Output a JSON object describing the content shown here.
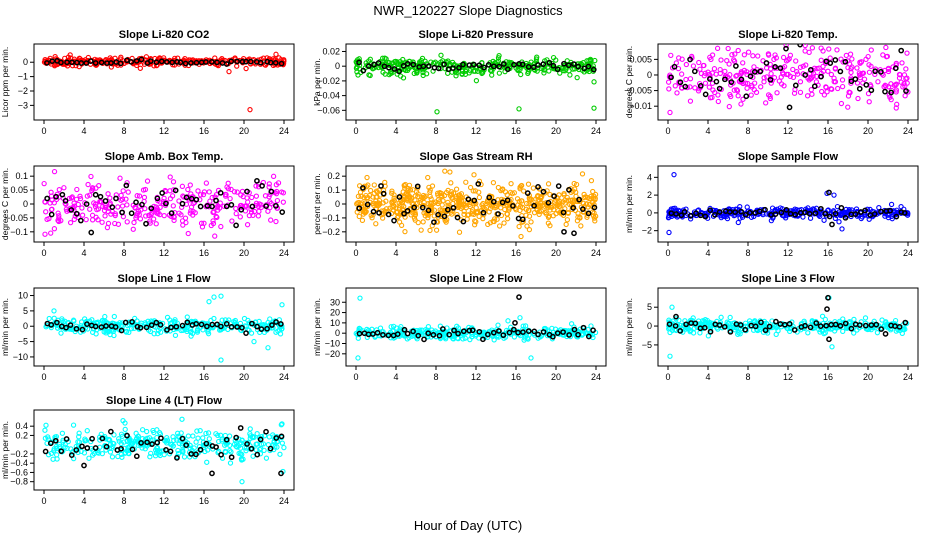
{
  "figure": {
    "title": "NWR_120227  Slope Diagnostics",
    "xlabel": "Hour of Day (UTC)"
  },
  "chart_data": [
    {
      "type": "scatter",
      "title": "Slope Li-820 CO2",
      "ylabel": "Licor ppm per min.",
      "xlim": [
        0,
        24
      ],
      "ylim": [
        -3.6,
        0.85
      ],
      "yticks": [
        -3,
        -2,
        -1,
        0
      ],
      "xticks": [
        0,
        4,
        8,
        12,
        16,
        20,
        24
      ],
      "series": [
        {
          "color": "#ff0000",
          "center": 0.05,
          "spread": 0.14,
          "n": 300,
          "outliers": [
            [
              20.6,
              -3.3
            ],
            [
              18.5,
              -0.65
            ],
            [
              23.2,
              0.55
            ],
            [
              23.5,
              0.3
            ]
          ]
        },
        {
          "color": "#000000",
          "center": 0.0,
          "spread": 0.06,
          "n": 48,
          "outliers": []
        }
      ]
    },
    {
      "type": "scatter",
      "title": "Slope Li-820 Pressure",
      "ylabel": "kPa per min.",
      "xlim": [
        0,
        24
      ],
      "ylim": [
        -0.065,
        0.022
      ],
      "yticks": [
        0.02,
        0.0,
        -0.02,
        -0.04,
        -0.06
      ],
      "xticks": [
        0,
        4,
        8,
        12,
        16,
        20,
        24
      ],
      "series": [
        {
          "color": "#00cc00",
          "center": 0.0,
          "spread": 0.006,
          "n": 340,
          "outliers": [
            [
              8.1,
              -0.062
            ],
            [
              16.3,
              -0.058
            ],
            [
              23.8,
              -0.057
            ],
            [
              0.2,
              -0.012
            ]
          ]
        },
        {
          "color": "#000000",
          "center": 0.0,
          "spread": 0.003,
          "n": 48,
          "outliers": []
        }
      ]
    },
    {
      "type": "scatter",
      "title": "Slope Li-820 Temp.",
      "ylabel": "degrees C per min.",
      "xlim": [
        0,
        24
      ],
      "ylim": [
        -0.0125,
        0.008
      ],
      "yticks": [
        0.005,
        0.0,
        -0.005,
        -0.01
      ],
      "xticks": [
        0,
        4,
        8,
        12,
        16,
        20,
        24
      ],
      "series": [
        {
          "color": "#ff00ff",
          "center": 0.0,
          "spread": 0.0045,
          "n": 320,
          "outliers": [
            [
              0.2,
              -0.012
            ],
            [
              23.9,
              0.007
            ]
          ]
        },
        {
          "color": "#000000",
          "center": 0.0,
          "spread": 0.004,
          "n": 48,
          "outliers": []
        }
      ]
    },
    {
      "type": "scatter",
      "title": "Slope Amb. Box Temp.",
      "ylabel": "degrees C per min.",
      "xlim": [
        0,
        24
      ],
      "ylim": [
        -0.115,
        0.115
      ],
      "yticks": [
        0.1,
        0.05,
        0.0,
        -0.05,
        -0.1
      ],
      "xticks": [
        0,
        4,
        8,
        12,
        16,
        20,
        24
      ],
      "series": [
        {
          "color": "#ff00ff",
          "center": 0.0,
          "spread": 0.045,
          "n": 320,
          "outliers": []
        },
        {
          "color": "#000000",
          "center": 0.0,
          "spread": 0.035,
          "n": 48,
          "outliers": []
        }
      ]
    },
    {
      "type": "scatter",
      "title": "Slope Gas Stream RH",
      "ylabel": "percent per min.",
      "xlim": [
        0,
        24
      ],
      "ylim": [
        -0.23,
        0.23
      ],
      "yticks": [
        0.2,
        0.1,
        0.0,
        -0.1,
        -0.2
      ],
      "xticks": [
        0,
        4,
        8,
        12,
        16,
        20,
        24
      ],
      "series": [
        {
          "color": "#ffa500",
          "center": 0.0,
          "spread": 0.07,
          "n": 600,
          "outliers": [
            [
              11.8,
              0.21
            ],
            [
              7.4,
              -0.19
            ]
          ]
        },
        {
          "color": "#000000",
          "center": 0.0,
          "spread": 0.07,
          "n": 48,
          "outliers": [
            [
              20.8,
              -0.2
            ],
            [
              21.8,
              -0.21
            ],
            [
              2.5,
              0.13
            ]
          ]
        }
      ]
    },
    {
      "type": "scatter",
      "title": "Slope Sample Flow",
      "ylabel": "ml/min per min.",
      "xlim": [
        0,
        24
      ],
      "ylim": [
        -2.6,
        4.6
      ],
      "yticks": [
        4,
        2,
        0,
        -2
      ],
      "xticks": [
        0,
        4,
        8,
        12,
        16,
        20,
        24
      ],
      "series": [
        {
          "color": "#0000ff",
          "center": 0.0,
          "spread": 0.3,
          "n": 320,
          "outliers": [
            [
              0.6,
              4.3
            ],
            [
              0.1,
              -2.2
            ],
            [
              16.6,
              2.0
            ],
            [
              15.9,
              2.2
            ],
            [
              17.1,
              -1.0
            ],
            [
              17.4,
              -1.8
            ]
          ]
        },
        {
          "color": "#000000",
          "center": 0.0,
          "spread": 0.25,
          "n": 48,
          "outliers": [
            [
              16.1,
              2.3
            ],
            [
              16.4,
              -1.3
            ]
          ]
        }
      ]
    },
    {
      "type": "scatter",
      "title": "Slope Line 1 Flow",
      "ylabel": "ml/min per min.",
      "xlim": [
        0,
        24
      ],
      "ylim": [
        -11,
        10.5
      ],
      "yticks": [
        10,
        5,
        0,
        -5,
        -10
      ],
      "xticks": [
        0,
        4,
        8,
        12,
        16,
        20,
        24
      ],
      "series": [
        {
          "color": "#00ffff",
          "center": 0.0,
          "spread": 1.3,
          "n": 320,
          "outliers": [
            [
              16.5,
              8
            ],
            [
              17.0,
              9.5
            ],
            [
              17.7,
              9.8
            ],
            [
              17.7,
              -11
            ],
            [
              21.0,
              -5
            ],
            [
              22.4,
              -7
            ],
            [
              23.8,
              7
            ],
            [
              1.0,
              5
            ]
          ]
        },
        {
          "color": "#000000",
          "center": 0.0,
          "spread": 0.8,
          "n": 48,
          "outliers": []
        }
      ]
    },
    {
      "type": "scatter",
      "title": "Slope Line 2 Flow",
      "ylabel": "ml/min per min.",
      "xlim": [
        0,
        24
      ],
      "ylim": [
        -26,
        38
      ],
      "yticks": [
        30,
        20,
        10,
        0,
        -10,
        -20
      ],
      "xticks": [
        0,
        4,
        8,
        12,
        16,
        20,
        24
      ],
      "series": [
        {
          "color": "#00ffff",
          "center": 0.0,
          "spread": 3.0,
          "n": 320,
          "outliers": [
            [
              0.4,
              34
            ],
            [
              0.2,
              -24
            ],
            [
              15.2,
              12
            ],
            [
              16.4,
              15
            ],
            [
              17.5,
              -24
            ],
            [
              23.5,
              7
            ]
          ]
        },
        {
          "color": "#000000",
          "center": 0.0,
          "spread": 2.2,
          "n": 48,
          "outliers": [
            [
              16.3,
              35
            ],
            [
              15.9,
              10
            ]
          ]
        }
      ]
    },
    {
      "type": "scatter",
      "title": "Slope Line 3 Flow",
      "ylabel": "ml/min per min.",
      "xlim": [
        0,
        24
      ],
      "ylim": [
        -9,
        8.5
      ],
      "yticks": [
        5,
        0,
        -5
      ],
      "xticks": [
        0,
        4,
        8,
        12,
        16,
        20,
        24
      ],
      "series": [
        {
          "color": "#00ffff",
          "center": 0.0,
          "spread": 0.9,
          "n": 320,
          "outliers": [
            [
              0.2,
              -8
            ],
            [
              0.4,
              5
            ],
            [
              16.1,
              7.5
            ],
            [
              15.6,
              -2
            ],
            [
              16.4,
              -5.5
            ]
          ]
        },
        {
          "color": "#000000",
          "center": 0.0,
          "spread": 0.7,
          "n": 48,
          "outliers": [
            [
              16.0,
              7.5
            ],
            [
              15.9,
              4.5
            ],
            [
              16.1,
              -3.5
            ],
            [
              0.8,
              2.5
            ]
          ]
        }
      ]
    },
    {
      "type": "scatter",
      "title": "Slope Line 4 (LT) Flow",
      "ylabel": "ml/min per min.",
      "xlim": [
        0,
        24
      ],
      "ylim": [
        -0.85,
        0.62
      ],
      "yticks": [
        0.4,
        0.2,
        -0.2,
        -0.4,
        -0.6,
        -0.8
      ],
      "xticks": [
        0,
        4,
        8,
        12,
        16,
        20,
        24
      ],
      "series": [
        {
          "color": "#00ffff",
          "center": 0.0,
          "spread": 0.16,
          "n": 340,
          "outliers": [
            [
              7.9,
              0.52
            ],
            [
              13.8,
              0.55
            ],
            [
              19.8,
              -0.8
            ],
            [
              0.2,
              0.42
            ],
            [
              23.8,
              0.45
            ]
          ]
        },
        {
          "color": "#000000",
          "center": 0.0,
          "spread": 0.17,
          "n": 48,
          "outliers": [
            [
              16.8,
              -0.62
            ],
            [
              23.7,
              -0.62
            ],
            [
              4.0,
              -0.45
            ]
          ]
        }
      ]
    }
  ]
}
